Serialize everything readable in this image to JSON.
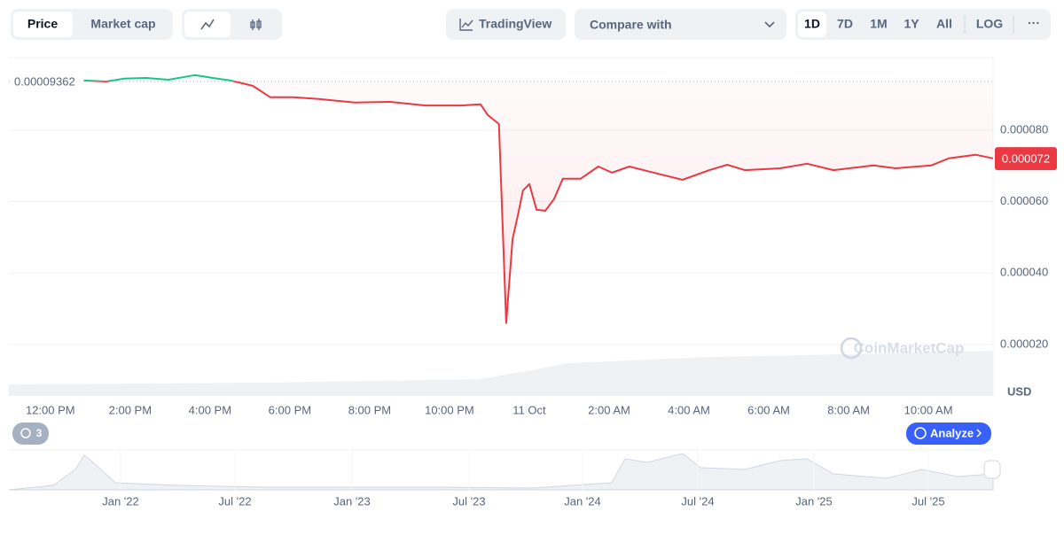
{
  "toolbar": {
    "tabs": [
      "Price",
      "Market cap"
    ],
    "tradingview": "TradingView",
    "compare": "Compare with",
    "ranges": [
      "1D",
      "7D",
      "1M",
      "1Y",
      "All",
      "LOG"
    ],
    "more": "···"
  },
  "chart_data": {
    "type": "line",
    "x": [
      12.84,
      13.4,
      13.84,
      14.4,
      14.96,
      15.62,
      16.07,
      16.51,
      17.07,
      17.51,
      18.07,
      18.73,
      19.62,
      20.51,
      21.4,
      22.29,
      22.78,
      22.96,
      23.24,
      23.42,
      23.58,
      23.73,
      23.84,
      24.0,
      24.18,
      24.4,
      24.62,
      24.84,
      25.29,
      25.73,
      26.07,
      26.51,
      27.18,
      27.84,
      28.51,
      28.96,
      29.4,
      30.29,
      30.96,
      31.62,
      32.62,
      33.18,
      34.07,
      34.51,
      35.18,
      35.62
    ],
    "values": [
      9.388e-05,
      9.36e-05,
      9.44e-05,
      9.46e-05,
      9.41e-05,
      9.54e-05,
      9.46e-05,
      9.39e-05,
      9.24e-05,
      8.92e-05,
      8.92e-05,
      8.87e-05,
      8.77e-05,
      8.79e-05,
      8.69e-05,
      8.69e-05,
      8.72e-05,
      8.42e-05,
      8.17e-05,
      2.6e-05,
      4.95e-05,
      5.7e-05,
      6.31e-05,
      6.49e-05,
      5.77e-05,
      5.74e-05,
      6.07e-05,
      6.64e-05,
      6.64e-05,
      6.98e-05,
      6.81e-05,
      6.98e-05,
      6.79e-05,
      6.61e-05,
      6.88e-05,
      7.03e-05,
      6.88e-05,
      6.93e-05,
      7.06e-05,
      6.88e-05,
      7.01e-05,
      6.93e-05,
      7.01e-05,
      7.21e-05,
      7.31e-05,
      7.21e-05
    ],
    "color": "#ea3943",
    "above_color": "#16c784",
    "reference": {
      "value": 9.362e-05,
      "label": "0.00009362"
    },
    "last_price": {
      "value": 7.2e-05,
      "label": "0.000072"
    },
    "currency": "USD",
    "watermark": "CoinMarketCap",
    "xlim": [
      10.96,
      35.62
    ],
    "xticks": [
      {
        "value": 12,
        "label": "12:00 PM"
      },
      {
        "value": 14,
        "label": "2:00 PM"
      },
      {
        "value": 16,
        "label": "4:00 PM"
      },
      {
        "value": 18,
        "label": "6:00 PM"
      },
      {
        "value": 20,
        "label": "8:00 PM"
      },
      {
        "value": 22,
        "label": "10:00 PM"
      },
      {
        "value": 24,
        "label": "11 Oct"
      },
      {
        "value": 26,
        "label": "2:00 AM"
      },
      {
        "value": 28,
        "label": "4:00 AM"
      },
      {
        "value": 30,
        "label": "6:00 AM"
      },
      {
        "value": 32,
        "label": "8:00 AM"
      },
      {
        "value": 34,
        "label": "10:00 AM"
      }
    ],
    "ylim": [
      5.6e-06,
      0.0001003
    ],
    "yticks": [
      {
        "value": 2e-05,
        "label": "0.000020"
      },
      {
        "value": 4e-05,
        "label": "0.000040"
      },
      {
        "value": 6e-05,
        "label": "0.000060"
      },
      {
        "value": 8e-05,
        "label": "0.000080"
      }
    ],
    "grid": true
  },
  "navigator": {
    "labels": [
      "Jan '22",
      "Jul '22",
      "Jan '23",
      "Jul '23",
      "Jan '24",
      "Jul '24",
      "Jan '25",
      "Jul '25"
    ]
  },
  "footer": {
    "history_count": 3,
    "analyze": "Analyze"
  }
}
